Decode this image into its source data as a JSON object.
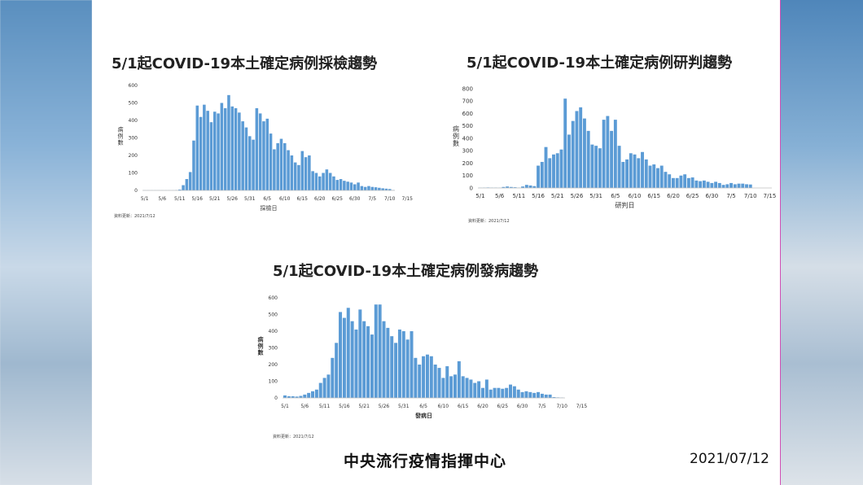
{
  "footer": {
    "organization": "中央流行疫情指揮中心",
    "date": "2021/07/12"
  },
  "chart_data": [
    {
      "type": "bar",
      "title": "5/1起COVID-19本土確定病例採檢趨勢",
      "xlabel": "採檢日",
      "ylabel": "病例數",
      "source": "資料更新：2021/7/12",
      "ylim": [
        0,
        600
      ],
      "yticks": [
        0,
        100,
        200,
        300,
        400,
        500,
        600
      ],
      "xticks": [
        "5/1",
        "5/6",
        "5/11",
        "5/16",
        "5/21",
        "5/26",
        "5/31",
        "6/5",
        "6/10",
        "6/15",
        "6/20",
        "6/25",
        "6/30",
        "7/5",
        "7/10",
        "7/15"
      ],
      "color": "#5b9bd5",
      "values": [
        1,
        1,
        1,
        1,
        1,
        1,
        1,
        1,
        1,
        2,
        5,
        30,
        65,
        105,
        285,
        485,
        420,
        490,
        455,
        390,
        450,
        440,
        500,
        470,
        545,
        480,
        470,
        445,
        395,
        360,
        310,
        290,
        470,
        440,
        395,
        410,
        325,
        235,
        270,
        295,
        270,
        230,
        200,
        160,
        145,
        225,
        190,
        200,
        110,
        100,
        80,
        100,
        120,
        100,
        80,
        60,
        65,
        55,
        50,
        45,
        35,
        45,
        25,
        20,
        25,
        20,
        18,
        15,
        12,
        10,
        8,
        2
      ]
    },
    {
      "type": "bar",
      "title": "5/1起COVID-19本土確定病例研判趨勢",
      "xlabel": "研判日",
      "ylabel": "病例數",
      "source": "資料更新：2021/7/12",
      "ylim": [
        0,
        800
      ],
      "yticks": [
        0,
        100,
        200,
        300,
        400,
        500,
        600,
        700,
        800
      ],
      "xticks": [
        "5/1",
        "5/6",
        "5/11",
        "5/16",
        "5/21",
        "5/26",
        "5/31",
        "6/5",
        "6/10",
        "6/15",
        "6/20",
        "6/25",
        "6/30",
        "7/5",
        "7/10",
        "7/15"
      ],
      "color": "#5b9bd5",
      "values": [
        2,
        3,
        4,
        3,
        3,
        2,
        8,
        12,
        8,
        6,
        3,
        12,
        25,
        20,
        15,
        180,
        210,
        330,
        240,
        270,
        280,
        310,
        720,
        430,
        540,
        620,
        650,
        560,
        460,
        350,
        340,
        320,
        550,
        580,
        460,
        550,
        340,
        210,
        230,
        280,
        270,
        240,
        290,
        230,
        180,
        190,
        160,
        180,
        130,
        110,
        80,
        80,
        100,
        110,
        80,
        85,
        60,
        55,
        60,
        50,
        40,
        50,
        40,
        25,
        30,
        40,
        30,
        35,
        35,
        30,
        28
      ]
    },
    {
      "type": "bar",
      "title": "5/1起COVID-19本土確定病例發病趨勢",
      "xlabel": "發病日",
      "ylabel": "病例數",
      "source": "資料更新：2021/7/12",
      "ylim": [
        0,
        600
      ],
      "yticks": [
        0,
        100,
        200,
        300,
        400,
        500,
        600
      ],
      "xticks": [
        "5/1",
        "5/6",
        "5/11",
        "5/16",
        "5/21",
        "5/26",
        "5/31",
        "6/5",
        "6/10",
        "6/15",
        "6/20",
        "6/25",
        "6/30",
        "7/5",
        "7/10",
        "7/15"
      ],
      "color": "#5b9bd5",
      "values": [
        15,
        10,
        10,
        8,
        12,
        20,
        30,
        40,
        50,
        90,
        120,
        140,
        240,
        330,
        515,
        480,
        540,
        460,
        410,
        530,
        460,
        430,
        380,
        560,
        560,
        460,
        420,
        370,
        330,
        410,
        400,
        350,
        400,
        240,
        200,
        250,
        260,
        250,
        200,
        180,
        120,
        190,
        130,
        140,
        220,
        130,
        120,
        110,
        90,
        100,
        60,
        110,
        50,
        60,
        60,
        55,
        60,
        80,
        70,
        50,
        35,
        40,
        35,
        30,
        35,
        25,
        20,
        20,
        5,
        3,
        2
      ]
    }
  ]
}
